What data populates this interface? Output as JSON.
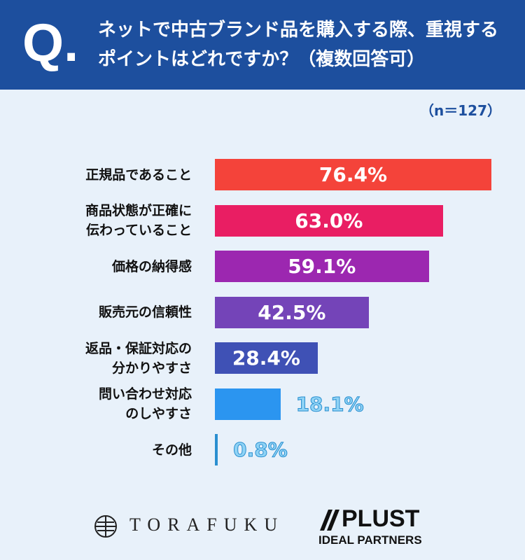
{
  "header": {
    "mark": "Q."
  },
  "chart_data": {
    "type": "bar",
    "orientation": "horizontal",
    "title": "ネットで中古ブランド品を購入する際、重視するポイントはどれですか？（複数回答可）",
    "note": "（n＝127）",
    "categories": [
      "正規品であること",
      "商品状態が正確に\n伝わっていること",
      "価格の納得感",
      "販売元の信頼性",
      "返品・保証対応の\n分かりやすさ",
      "問い合わせ対応\nのしやすさ",
      "その他"
    ],
    "values": [
      76.4,
      63.0,
      59.1,
      42.5,
      28.4,
      18.1,
      0.8
    ],
    "value_labels": [
      "76.4%",
      "63.0%",
      "59.1%",
      "42.5%",
      "28.4%",
      "18.1%",
      "0.8%"
    ],
    "colors": [
      "#f4433a",
      "#e91e63",
      "#9c27b0",
      "#7444b8",
      "#3f51b5",
      "#2b95f0",
      "#2a8fd0"
    ]
  },
  "footer": {
    "logo1": "TORAFUKU",
    "logo2": "PLUST",
    "logo3": "IDEAL PARTNERS"
  }
}
